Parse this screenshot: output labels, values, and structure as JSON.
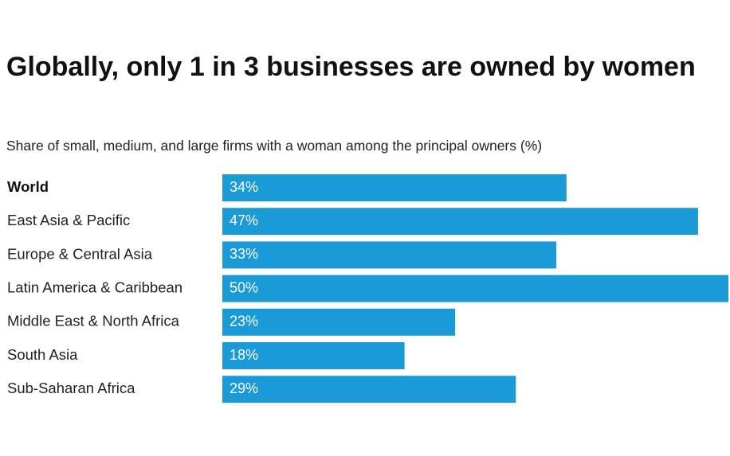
{
  "chart_data": {
    "type": "bar",
    "orientation": "horizontal",
    "title": "Globally, only 1 in 3 businesses are owned by women",
    "subtitle": "Share of small, medium, and large firms with a woman among the principal owners (%)",
    "categories": [
      "World",
      "East Asia & Pacific",
      "Europe & Central Asia",
      "Latin America & Caribbean",
      "Middle East & North Africa",
      "South Asia",
      "Sub-Saharan Africa"
    ],
    "values": [
      34,
      47,
      33,
      50,
      23,
      18,
      29
    ],
    "value_labels": [
      "34%",
      "47%",
      "33%",
      "50%",
      "23%",
      "18%",
      "29%"
    ],
    "color": "#1a9bd7"
  }
}
